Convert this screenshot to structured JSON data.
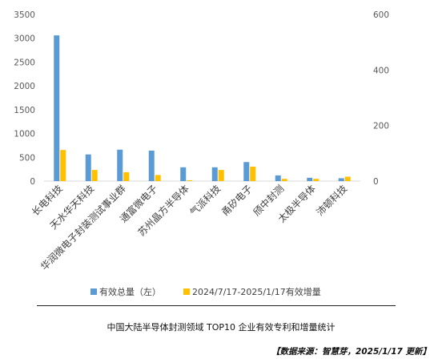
{
  "chart_data": {
    "type": "bar",
    "categories": [
      "长电科技",
      "天水华天科技",
      "华润微电子封装测试事业群",
      "通富微电子",
      "苏州晶方半导体",
      "气派科技",
      "甬矽电子",
      "颀中封测",
      "太极半导体",
      "沛顿科技"
    ],
    "series": [
      {
        "name": "有效总量（左）",
        "axis": "left",
        "color": "#5b9bd5",
        "values": [
          3060,
          560,
          660,
          640,
          290,
          290,
          400,
          120,
          70,
          60
        ]
      },
      {
        "name": "2024/7/17-2025/1/17有效增量",
        "axis": "right",
        "color": "#ffc000",
        "values": [
          112,
          40,
          32,
          22,
          3,
          40,
          52,
          8,
          8,
          16
        ]
      }
    ],
    "left_axis": {
      "ylim": [
        0,
        3500
      ],
      "ticks": [
        "0",
        "500",
        "1000",
        "1500",
        "2000",
        "2500",
        "3000",
        "3500"
      ]
    },
    "right_axis": {
      "ylim": [
        0,
        600
      ],
      "ticks": [
        "0",
        "200",
        "400",
        "600"
      ]
    },
    "grid": false,
    "legend_position": "bottom",
    "title": "中国大陆半导体封测领域 TOP10 企业有效专利和增量统计"
  },
  "source_note": "【数据来源：智慧芽，2025/1/17 更新】"
}
